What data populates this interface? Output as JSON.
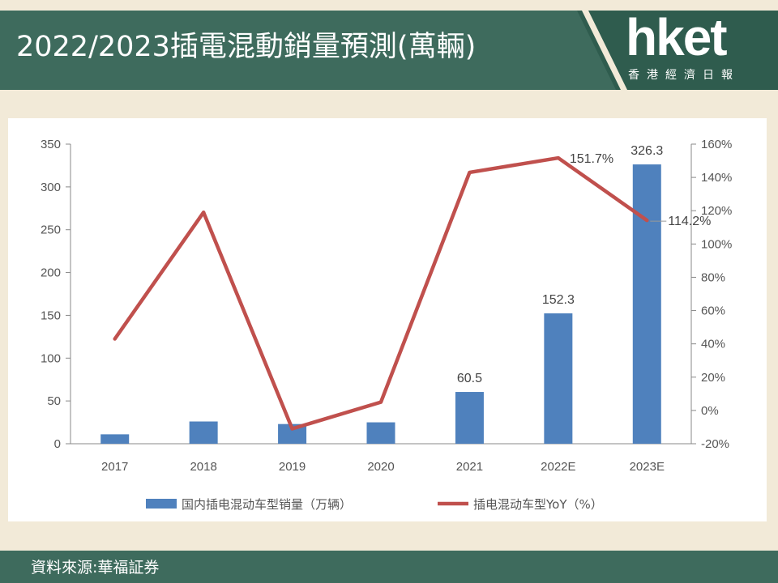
{
  "header": {
    "title": "2022/2023插電混動銷量預測(萬輛)",
    "logo_text": "hket",
    "logo_subtitle": "香港經濟日報"
  },
  "footer": {
    "source": "資料來源:華福証券"
  },
  "colors": {
    "header_bg": "#3e6b5d",
    "page_bg": "#f2ead8",
    "bar": "#4f81bd",
    "line": "#c0504d"
  },
  "chart_data": {
    "type": "bar",
    "categories": [
      "2017",
      "2018",
      "2019",
      "2020",
      "2021",
      "2022E",
      "2023E"
    ],
    "series": [
      {
        "name": "国内插电混动车型销量（万辆）",
        "type": "bar",
        "axis": "left",
        "values": [
          11,
          26,
          23,
          25,
          60.5,
          152.3,
          326.3
        ],
        "data_labels": [
          "",
          "",
          "",
          "",
          "60.5",
          "152.3",
          "326.3"
        ]
      },
      {
        "name": "插电混动车型YoY（%）",
        "type": "line",
        "axis": "right",
        "values": [
          43,
          119,
          -11,
          5,
          143,
          151.7,
          114.2
        ],
        "data_labels": [
          "",
          "",
          "",
          "",
          "",
          "151.7%",
          "114.2%"
        ]
      }
    ],
    "yleft": {
      "min": 0,
      "max": 350,
      "step": 50,
      "ticks": [
        "0",
        "50",
        "100",
        "150",
        "200",
        "250",
        "300",
        "350"
      ]
    },
    "yright": {
      "min": -20,
      "max": 160,
      "step": 20,
      "ticks": [
        "-20%",
        "0%",
        "20%",
        "40%",
        "60%",
        "80%",
        "100%",
        "120%",
        "140%",
        "160%"
      ]
    },
    "legend": "bottom",
    "grid": false
  }
}
